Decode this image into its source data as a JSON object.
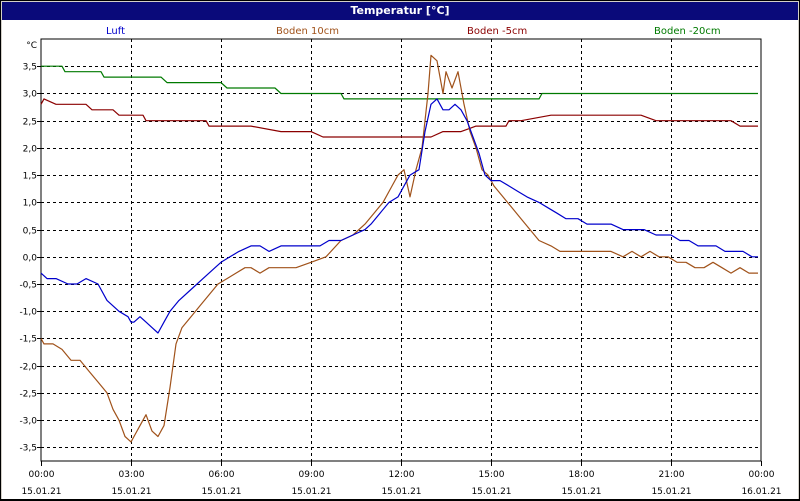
{
  "window": {
    "title": "Temperatur [°C]"
  },
  "colors": {
    "luft": "#0000cc",
    "boden10": "#a0521a",
    "boden5": "#8b0000",
    "boden20": "#007a00",
    "grid": "#000000",
    "titlebar": "#0a0a7a"
  },
  "chart_data": {
    "type": "line",
    "title": "Temperatur [°C]",
    "ylabel": "°C",
    "ylim": [
      -3.75,
      4.0
    ],
    "yticks": [
      "3,5",
      "3,0",
      "2,5",
      "2,0",
      "1,5",
      "1,0",
      "0,5",
      "0,0",
      "-0,5",
      "-1,0",
      "-1,5",
      "-2,0",
      "-2,5",
      "-3,0",
      "-3,5"
    ],
    "ytick_values": [
      3.5,
      3.0,
      2.5,
      2.0,
      1.5,
      1.0,
      0.5,
      0.0,
      -0.5,
      -1.0,
      -1.5,
      -2.0,
      -2.5,
      -3.0,
      -3.5
    ],
    "xlim": [
      0,
      24
    ],
    "xticks": [
      {
        "time": "00:00",
        "date": "15.01.21"
      },
      {
        "time": "03:00",
        "date": "15.01.21"
      },
      {
        "time": "06:00",
        "date": "15.01.21"
      },
      {
        "time": "09:00",
        "date": "15.01.21"
      },
      {
        "time": "12:00",
        "date": "15.01.21"
      },
      {
        "time": "15:00",
        "date": "15.01.21"
      },
      {
        "time": "18:00",
        "date": "15.01.21"
      },
      {
        "time": "21:00",
        "date": "15.01.21"
      },
      {
        "time": "00:00",
        "date": "16.01.21"
      }
    ],
    "grid": true,
    "legend_position": "top",
    "series": [
      {
        "name": "Luft",
        "color": "#0000cc",
        "x": [
          0,
          0.2,
          0.5,
          0.9,
          1.2,
          1.5,
          1.9,
          2.2,
          2.6,
          2.9,
          3.0,
          3.1,
          3.3,
          3.5,
          3.7,
          3.9,
          4.1,
          4.3,
          4.6,
          5.0,
          5.4,
          5.8,
          6.0,
          6.3,
          6.6,
          7.0,
          7.3,
          7.6,
          8.0,
          8.3,
          8.6,
          8.9,
          9.3,
          9.6,
          10.0,
          10.4,
          10.8,
          11.0,
          11.3,
          11.6,
          11.9,
          12.1,
          12.3,
          12.6,
          12.8,
          13.0,
          13.2,
          13.4,
          13.6,
          13.8,
          14.0,
          14.2,
          14.4,
          14.6,
          14.8,
          15.0,
          15.3,
          15.6,
          15.9,
          16.2,
          16.6,
          16.9,
          17.2,
          17.5,
          17.9,
          18.2,
          18.6,
          19.0,
          19.4,
          19.8,
          20.1,
          20.5,
          21.0,
          21.3,
          21.6,
          21.9,
          22.2,
          22.5,
          22.8,
          23.1,
          23.4,
          23.7,
          23.9
        ],
        "y": [
          -0.3,
          -0.4,
          -0.4,
          -0.5,
          -0.5,
          -0.4,
          -0.5,
          -0.8,
          -1.0,
          -1.1,
          -1.2,
          -1.2,
          -1.1,
          -1.2,
          -1.3,
          -1.4,
          -1.2,
          -1.0,
          -0.8,
          -0.6,
          -0.4,
          -0.2,
          -0.1,
          0.0,
          0.1,
          0.2,
          0.2,
          0.1,
          0.2,
          0.2,
          0.2,
          0.2,
          0.2,
          0.3,
          0.3,
          0.4,
          0.5,
          0.6,
          0.8,
          1.0,
          1.1,
          1.3,
          1.5,
          1.6,
          2.3,
          2.8,
          2.9,
          2.7,
          2.7,
          2.8,
          2.7,
          2.5,
          2.2,
          1.9,
          1.5,
          1.4,
          1.4,
          1.3,
          1.2,
          1.1,
          1.0,
          0.9,
          0.8,
          0.7,
          0.7,
          0.6,
          0.6,
          0.6,
          0.5,
          0.5,
          0.5,
          0.4,
          0.4,
          0.3,
          0.3,
          0.2,
          0.2,
          0.2,
          0.1,
          0.1,
          0.1,
          0.0,
          0.0
        ]
      },
      {
        "name": "Boden 10cm",
        "color": "#a0521a",
        "x": [
          0,
          0.1,
          0.4,
          0.7,
          1.0,
          1.3,
          1.6,
          1.9,
          2.2,
          2.4,
          2.6,
          2.8,
          3.0,
          3.1,
          3.3,
          3.5,
          3.7,
          3.9,
          4.1,
          4.3,
          4.5,
          4.7,
          5.0,
          5.3,
          5.6,
          5.9,
          6.2,
          6.5,
          6.8,
          7.0,
          7.3,
          7.6,
          8.0,
          8.5,
          9.0,
          9.5,
          10.0,
          10.4,
          10.8,
          11.1,
          11.4,
          11.7,
          11.9,
          12.1,
          12.3,
          12.5,
          12.7,
          12.9,
          13.0,
          13.2,
          13.4,
          13.5,
          13.7,
          13.9,
          14.1,
          14.3,
          14.5,
          14.7,
          14.9,
          15.1,
          15.4,
          15.7,
          16.0,
          16.3,
          16.6,
          17.0,
          17.3,
          17.6,
          17.9,
          18.2,
          18.6,
          19.0,
          19.4,
          19.7,
          20.0,
          20.3,
          20.6,
          20.9,
          21.2,
          21.5,
          21.8,
          22.1,
          22.4,
          22.7,
          23.0,
          23.3,
          23.6,
          23.9
        ],
        "y": [
          -1.5,
          -1.6,
          -1.6,
          -1.7,
          -1.9,
          -1.9,
          -2.1,
          -2.3,
          -2.5,
          -2.8,
          -3.0,
          -3.3,
          -3.4,
          -3.3,
          -3.1,
          -2.9,
          -3.2,
          -3.3,
          -3.1,
          -2.4,
          -1.6,
          -1.3,
          -1.1,
          -0.9,
          -0.7,
          -0.5,
          -0.4,
          -0.3,
          -0.2,
          -0.2,
          -0.3,
          -0.2,
          -0.2,
          -0.2,
          -0.1,
          0.0,
          0.3,
          0.4,
          0.6,
          0.8,
          1.0,
          1.3,
          1.5,
          1.6,
          1.1,
          1.6,
          2.0,
          3.0,
          3.7,
          3.6,
          3.0,
          3.4,
          3.1,
          3.4,
          2.8,
          2.3,
          2.0,
          1.6,
          1.5,
          1.3,
          1.1,
          0.9,
          0.7,
          0.5,
          0.3,
          0.2,
          0.1,
          0.1,
          0.1,
          0.1,
          0.1,
          0.1,
          0.0,
          0.1,
          0.0,
          0.1,
          0.0,
          0.0,
          -0.1,
          -0.1,
          -0.2,
          -0.2,
          -0.1,
          -0.2,
          -0.3,
          -0.2,
          -0.3,
          -0.3
        ]
      },
      {
        "name": "Boden -5cm",
        "color": "#8b0000",
        "x": [
          0,
          0.1,
          0.5,
          1.0,
          1.5,
          1.7,
          2.0,
          2.4,
          2.6,
          3.0,
          3.4,
          3.5,
          4.0,
          4.5,
          5.0,
          5.5,
          5.6,
          6.0,
          7.0,
          8.0,
          9.0,
          9.4,
          10.0,
          11.0,
          12.0,
          13.0,
          13.4,
          14.0,
          14.5,
          15.0,
          15.5,
          15.6,
          16.0,
          17.0,
          18.0,
          19.0,
          20.0,
          20.5,
          21.0,
          22.0,
          23.0,
          23.3,
          23.9
        ],
        "y": [
          2.8,
          2.9,
          2.8,
          2.8,
          2.8,
          2.7,
          2.7,
          2.7,
          2.6,
          2.6,
          2.6,
          2.5,
          2.5,
          2.5,
          2.5,
          2.5,
          2.4,
          2.4,
          2.4,
          2.3,
          2.3,
          2.2,
          2.2,
          2.2,
          2.2,
          2.2,
          2.3,
          2.3,
          2.4,
          2.4,
          2.4,
          2.5,
          2.5,
          2.6,
          2.6,
          2.6,
          2.6,
          2.5,
          2.5,
          2.5,
          2.5,
          2.4,
          2.4
        ]
      },
      {
        "name": "Boden -20cm",
        "color": "#007a00",
        "x": [
          0,
          0.7,
          0.8,
          1.5,
          2.0,
          2.1,
          3.0,
          4.0,
          4.2,
          5.0,
          6.0,
          6.2,
          7.0,
          7.8,
          8.0,
          9.0,
          10.0,
          10.1,
          11.0,
          12.0,
          13.0,
          14.0,
          15.0,
          16.0,
          16.6,
          16.7,
          18.0,
          20.0,
          22.0,
          23.9
        ],
        "y": [
          3.5,
          3.5,
          3.4,
          3.4,
          3.4,
          3.3,
          3.3,
          3.3,
          3.2,
          3.2,
          3.2,
          3.1,
          3.1,
          3.1,
          3.0,
          3.0,
          3.0,
          2.9,
          2.9,
          2.9,
          2.9,
          2.9,
          2.9,
          2.9,
          2.9,
          3.0,
          3.0,
          3.0,
          3.0,
          3.0
        ]
      }
    ]
  }
}
